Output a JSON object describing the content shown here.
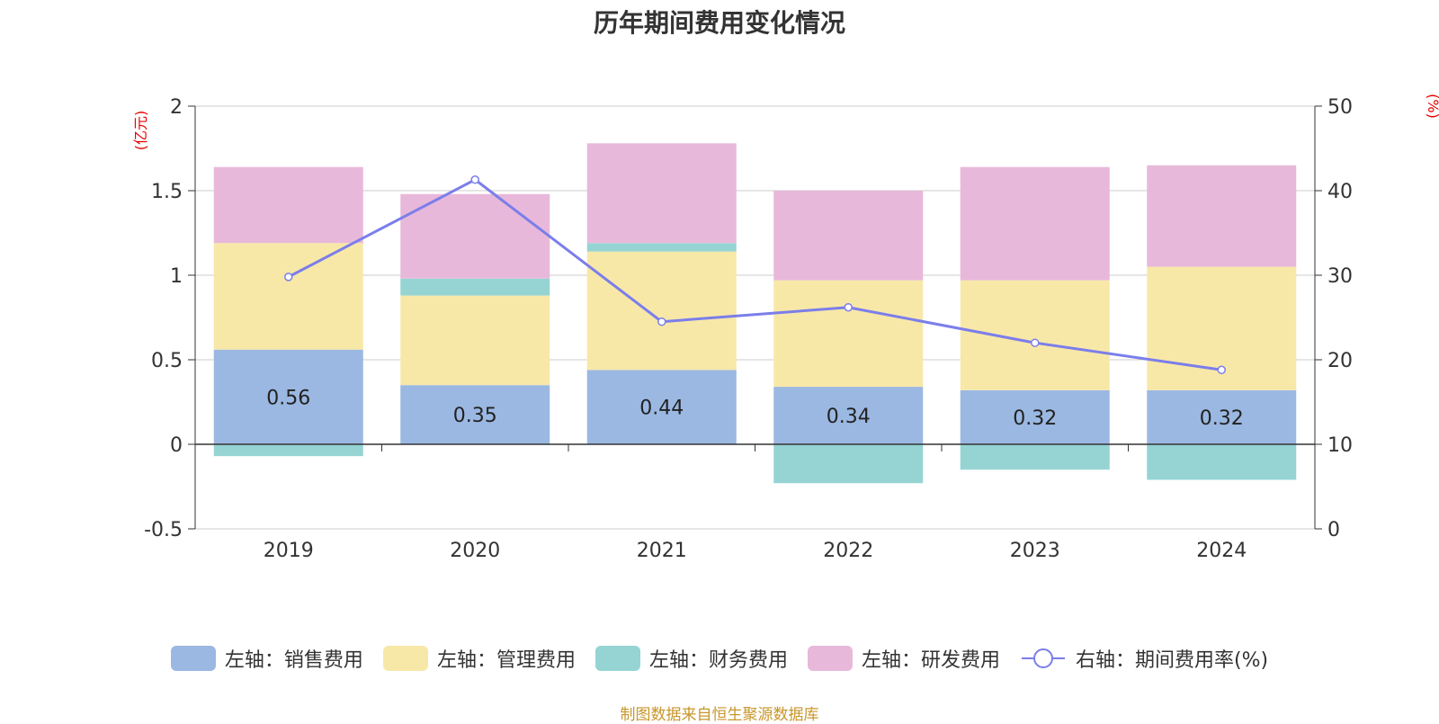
{
  "chart_data": {
    "type": "bar",
    "title": "历年期间费用变化情况",
    "categories": [
      "2019",
      "2020",
      "2021",
      "2022",
      "2023",
      "2024"
    ],
    "left_axis": {
      "unit": "(亿元)",
      "ylim": [
        -0.5,
        2
      ],
      "ticks": [
        "-0.5",
        "0",
        "0.5",
        "1",
        "1.5",
        "2"
      ]
    },
    "right_axis": {
      "unit": "(%)",
      "ylim": [
        0,
        50
      ],
      "ticks": [
        "0",
        "10",
        "20",
        "30",
        "40",
        "50"
      ]
    },
    "series": [
      {
        "name": "左轴：销售费用",
        "type": "bar",
        "axis": "left",
        "color": "#9bb8e2",
        "values": [
          0.56,
          0.35,
          0.44,
          0.34,
          0.32,
          0.32
        ],
        "labels": [
          "0.56",
          "0.35",
          "0.44",
          "0.34",
          "0.32",
          "0.32"
        ]
      },
      {
        "name": "左轴：管理费用",
        "type": "bar",
        "axis": "left",
        "color": "#f8e8a8",
        "values": [
          0.63,
          0.53,
          0.7,
          0.63,
          0.65,
          0.73
        ]
      },
      {
        "name": "左轴：财务费用",
        "type": "bar",
        "axis": "left",
        "color": "#96d4d4",
        "values": [
          -0.07,
          0.1,
          0.05,
          -0.23,
          -0.15,
          -0.21
        ]
      },
      {
        "name": "左轴：研发费用",
        "type": "bar",
        "axis": "left",
        "color": "#e8b8da",
        "values": [
          0.45,
          0.5,
          0.59,
          0.53,
          0.67,
          0.6
        ]
      },
      {
        "name": "右轴：期间费用率(%)",
        "type": "line",
        "axis": "right",
        "color": "#7b7eea",
        "values": [
          29.8,
          41.3,
          24.5,
          26.2,
          22.0,
          18.8
        ]
      }
    ],
    "grid": true,
    "legend_position": "bottom"
  },
  "source_note": "制图数据来自恒生聚源数据库"
}
